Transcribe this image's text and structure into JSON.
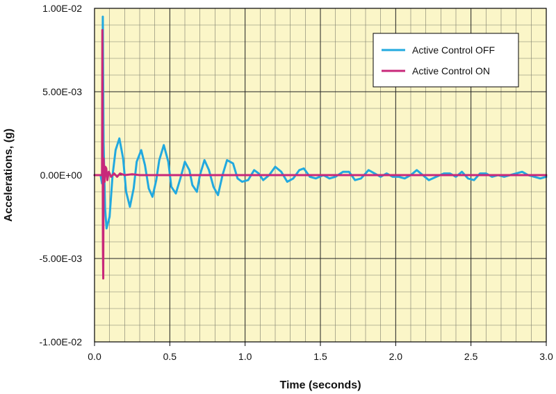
{
  "chart_data": {
    "type": "line",
    "title": "",
    "xlabel": "Time (seconds)",
    "ylabel": "Accelerations, (g)",
    "xlim": [
      0,
      3
    ],
    "ylim": [
      -0.01,
      0.01
    ],
    "x_ticks": [
      {
        "value": 0.0,
        "label": "0.0"
      },
      {
        "value": 0.5,
        "label": "0.5"
      },
      {
        "value": 1.0,
        "label": "1.0"
      },
      {
        "value": 1.5,
        "label": "1.5"
      },
      {
        "value": 2.0,
        "label": "2.0"
      },
      {
        "value": 2.5,
        "label": "2.5"
      },
      {
        "value": 3.0,
        "label": "3.0"
      }
    ],
    "y_ticks": [
      {
        "value": 0.01,
        "label": "1.00E-02"
      },
      {
        "value": 0.005,
        "label": "5.00E-03"
      },
      {
        "value": 0,
        "label": "0.00E+00"
      },
      {
        "value": -0.005,
        "label": "-5.00E-03"
      },
      {
        "value": -0.01,
        "label": "-1.00E-02"
      }
    ],
    "grid": true,
    "minor_grid_step_x": 0.1,
    "minor_grid_step_y": 0.001,
    "legend_position": "top-right",
    "background_color": "#FBF6C8",
    "series": [
      {
        "name": "Active Control OFF",
        "color": "#22A9DF",
        "points": [
          [
            0.0,
            0.0
          ],
          [
            0.04,
            0.0
          ],
          [
            0.05,
            -0.0005
          ],
          [
            0.055,
            0.0095
          ],
          [
            0.06,
            0.002
          ],
          [
            0.07,
            -0.002
          ],
          [
            0.08,
            -0.0032
          ],
          [
            0.1,
            -0.0025
          ],
          [
            0.12,
            0.0
          ],
          [
            0.14,
            0.0015
          ],
          [
            0.165,
            0.0022
          ],
          [
            0.19,
            0.001
          ],
          [
            0.21,
            -0.001
          ],
          [
            0.235,
            -0.0019
          ],
          [
            0.26,
            -0.0008
          ],
          [
            0.28,
            0.0008
          ],
          [
            0.31,
            0.0015
          ],
          [
            0.335,
            0.0006
          ],
          [
            0.36,
            -0.0008
          ],
          [
            0.385,
            -0.0013
          ],
          [
            0.41,
            -0.0003
          ],
          [
            0.43,
            0.0009
          ],
          [
            0.46,
            0.0018
          ],
          [
            0.49,
            0.0008
          ],
          [
            0.51,
            -0.0007
          ],
          [
            0.54,
            -0.0011
          ],
          [
            0.57,
            -0.0002
          ],
          [
            0.6,
            0.0008
          ],
          [
            0.63,
            0.0003
          ],
          [
            0.65,
            -0.0006
          ],
          [
            0.68,
            -0.001
          ],
          [
            0.7,
            0.0
          ],
          [
            0.73,
            0.0009
          ],
          [
            0.76,
            0.0003
          ],
          [
            0.79,
            -0.0007
          ],
          [
            0.82,
            -0.0012
          ],
          [
            0.85,
            0.0
          ],
          [
            0.88,
            0.0009
          ],
          [
            0.92,
            0.0007
          ],
          [
            0.95,
            -0.0002
          ],
          [
            0.98,
            -0.0004
          ],
          [
            1.02,
            -0.0003
          ],
          [
            1.06,
            0.0003
          ],
          [
            1.09,
            0.0001
          ],
          [
            1.12,
            -0.0003
          ],
          [
            1.16,
            0.0
          ],
          [
            1.2,
            0.0005
          ],
          [
            1.24,
            0.0002
          ],
          [
            1.28,
            -0.0004
          ],
          [
            1.32,
            -0.0002
          ],
          [
            1.36,
            0.0003
          ],
          [
            1.39,
            0.0004
          ],
          [
            1.43,
            -0.0001
          ],
          [
            1.47,
            -0.0002
          ],
          [
            1.52,
            0.0
          ],
          [
            1.56,
            -0.0002
          ],
          [
            1.6,
            -0.0001
          ],
          [
            1.65,
            0.0002
          ],
          [
            1.69,
            0.0002
          ],
          [
            1.73,
            -0.0003
          ],
          [
            1.77,
            -0.0002
          ],
          [
            1.82,
            0.0003
          ],
          [
            1.86,
            0.0001
          ],
          [
            1.9,
            -0.0001
          ],
          [
            1.94,
            0.0001
          ],
          [
            1.98,
            -0.0001
          ],
          [
            2.02,
            -0.0001
          ],
          [
            2.06,
            -0.0002
          ],
          [
            2.1,
            0.0
          ],
          [
            2.14,
            0.0003
          ],
          [
            2.18,
            0.0
          ],
          [
            2.22,
            -0.0003
          ],
          [
            2.27,
            -0.0001
          ],
          [
            2.32,
            0.0001
          ],
          [
            2.36,
            0.0001
          ],
          [
            2.4,
            -0.0001
          ],
          [
            2.44,
            0.0002
          ],
          [
            2.48,
            -0.0002
          ],
          [
            2.52,
            -0.0003
          ],
          [
            2.56,
            0.0001
          ],
          [
            2.6,
            0.0001
          ],
          [
            2.64,
            -0.0001
          ],
          [
            2.68,
            0.0
          ],
          [
            2.72,
            -0.0001
          ],
          [
            2.76,
            0.0
          ],
          [
            2.8,
            0.0001
          ],
          [
            2.84,
            0.0002
          ],
          [
            2.88,
            0.0
          ],
          [
            2.92,
            -0.0001
          ],
          [
            2.96,
            -0.0002
          ],
          [
            3.0,
            -0.0001
          ]
        ]
      },
      {
        "name": "Active Control ON",
        "color": "#C8287A",
        "points": [
          [
            0.0,
            0.0
          ],
          [
            0.04,
            0.0
          ],
          [
            0.05,
            0.0
          ],
          [
            0.052,
            0.0087
          ],
          [
            0.054,
            0.002
          ],
          [
            0.056,
            -0.0045
          ],
          [
            0.058,
            -0.0062
          ],
          [
            0.06,
            0.001
          ],
          [
            0.063,
            0.0005
          ],
          [
            0.067,
            -0.0004
          ],
          [
            0.072,
            0.0005
          ],
          [
            0.078,
            0.0004
          ],
          [
            0.085,
            -0.0003
          ],
          [
            0.095,
            0.0002
          ],
          [
            0.11,
            -0.0001
          ],
          [
            0.13,
            0.0001
          ],
          [
            0.15,
            -0.0001
          ],
          [
            0.17,
            0.0001
          ],
          [
            0.2,
            0.0
          ],
          [
            0.25,
            5e-05
          ],
          [
            0.3,
            0.0
          ],
          [
            0.5,
            0.0
          ],
          [
            1.0,
            0.0
          ],
          [
            1.5,
            0.0
          ],
          [
            2.0,
            0.0
          ],
          [
            2.5,
            0.0
          ],
          [
            3.0,
            0.0
          ]
        ]
      }
    ]
  }
}
